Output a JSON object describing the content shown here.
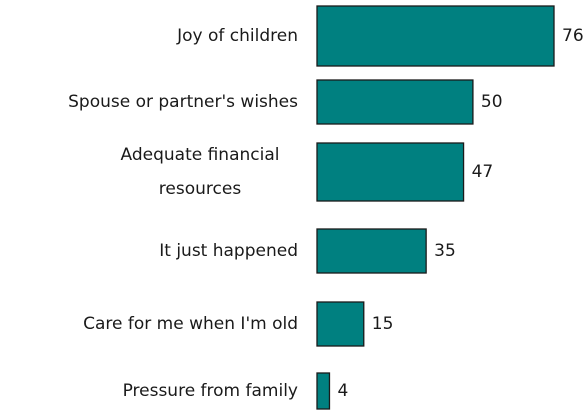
{
  "chart_data": {
    "type": "bar",
    "orientation": "horizontal",
    "categories": [
      [
        "Joy of children"
      ],
      [
        "Spouse or partner's wishes"
      ],
      [
        "Adequate financial",
        "resources"
      ],
      [
        "It just happened"
      ],
      [
        "Care for me when I'm old"
      ],
      [
        "Pressure from family"
      ]
    ],
    "values": [
      76,
      50,
      47,
      35,
      15,
      4
    ],
    "value_labels": [
      "76",
      "50",
      "47",
      "35",
      "15",
      "4"
    ],
    "xlim": [
      0,
      76
    ],
    "grid": false,
    "legend": "none",
    "bar_color": "#008080",
    "bar_border_color": "#1a1a1a",
    "text_color": "#1a1a1a"
  }
}
